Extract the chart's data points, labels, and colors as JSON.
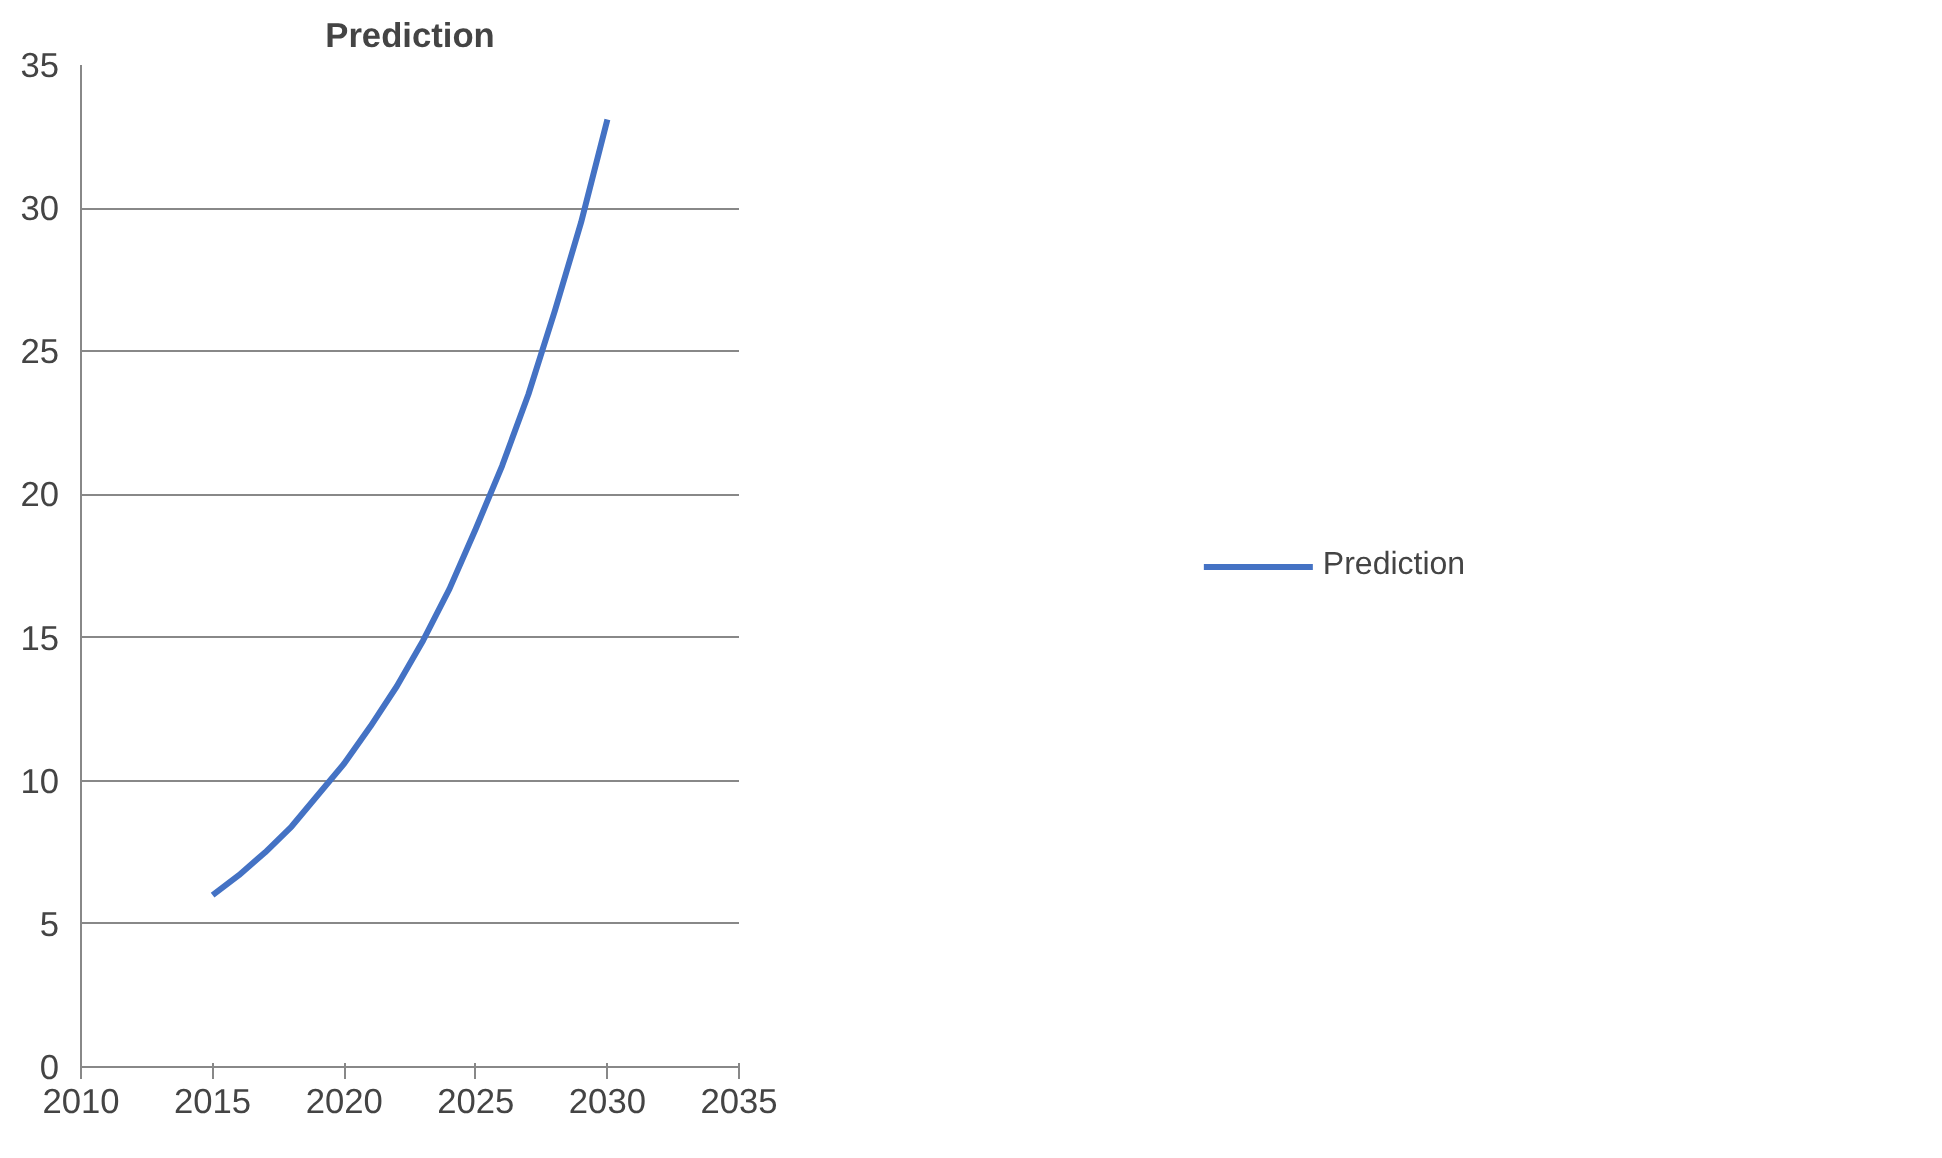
{
  "chart_data": {
    "type": "line",
    "title": "Prediction",
    "x": [
      2015,
      2016,
      2017,
      2018,
      2019,
      2020,
      2021,
      2022,
      2023,
      2024,
      2025,
      2026,
      2027,
      2028,
      2029,
      2030
    ],
    "series": [
      {
        "name": "Prediction",
        "color": "#4472c4",
        "values": [
          6.0,
          6.7,
          7.5,
          8.4,
          9.5,
          10.6,
          11.9,
          13.3,
          14.9,
          16.7,
          18.8,
          21.0,
          23.5,
          26.4,
          29.5,
          33.1
        ]
      }
    ],
    "xlim": [
      2010,
      2035
    ],
    "xticks": [
      2010,
      2015,
      2020,
      2025,
      2030,
      2035
    ],
    "ylim": [
      0,
      35
    ],
    "yticks": [
      0,
      5,
      10,
      15,
      20,
      25,
      30,
      35
    ],
    "grid": "y",
    "legend": "right",
    "marker": "none",
    "line_style": "solid"
  }
}
